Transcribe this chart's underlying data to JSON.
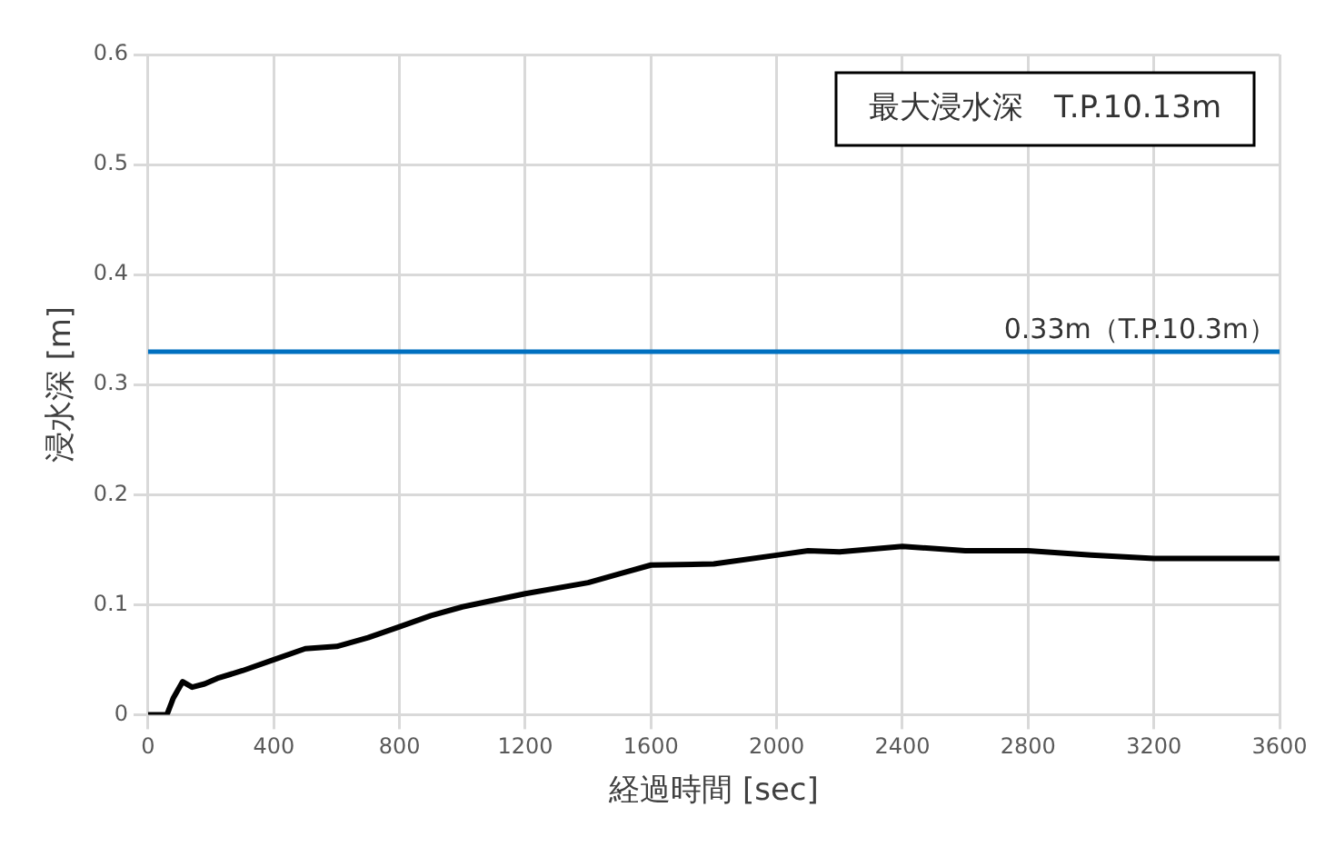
{
  "chart_data": {
    "type": "line",
    "xlabel": "経過時間 [sec]",
    "ylabel": "浸水深 [m]",
    "series": [
      {
        "color": "#000000",
        "x": [
          0,
          60,
          80,
          110,
          140,
          180,
          220,
          300,
          400,
          500,
          600,
          700,
          800,
          900,
          1000,
          1200,
          1400,
          1500,
          1600,
          1800,
          2000,
          2100,
          2200,
          2400,
          2600,
          2800,
          3000,
          3200,
          3600
        ],
        "values": [
          0,
          0,
          0.015,
          0.03,
          0.025,
          0.028,
          0.033,
          0.04,
          0.05,
          0.06,
          0.062,
          0.07,
          0.08,
          0.09,
          0.098,
          0.11,
          0.12,
          0.128,
          0.136,
          0.137,
          0.145,
          0.149,
          0.148,
          0.153,
          0.149,
          0.149,
          0.145,
          0.142,
          0.142
        ]
      }
    ],
    "xlim": [
      0,
      3600
    ],
    "xticks": [
      0,
      400,
      800,
      1200,
      1600,
      2000,
      2400,
      2800,
      3200,
      3600
    ],
    "ylim": [
      0,
      0.6
    ],
    "yticks": [
      0,
      0.1,
      0.2,
      0.3,
      0.4,
      0.5,
      0.6
    ],
    "ref_lines": [
      {
        "axis": "y",
        "value": 0.33,
        "label": "0.33m（T.P.10.3m）",
        "color": "#0070c0"
      }
    ],
    "annotations": [
      "最大浸水深　T.P.10.13m"
    ],
    "grid": true,
    "legend": false,
    "marker": "none",
    "line_style": "solid"
  }
}
